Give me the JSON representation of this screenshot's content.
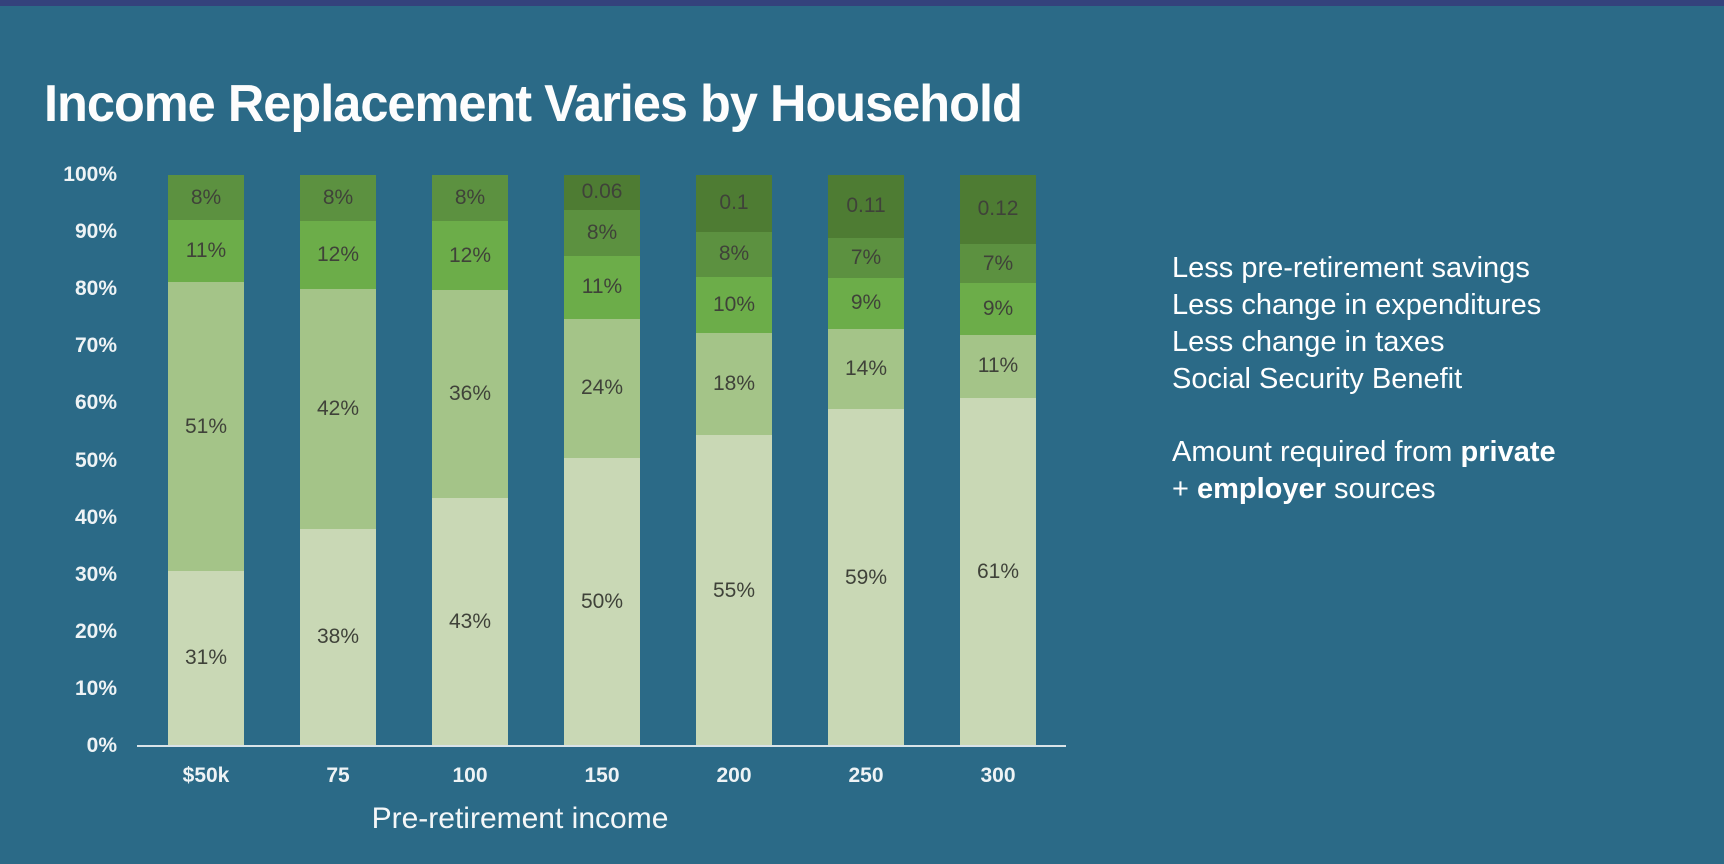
{
  "title": "Income Replacement Varies by Household",
  "colors": {
    "background": "#2b6a87",
    "top_strip": "#34427c",
    "axis_line": "#d9e3e8",
    "tick_label": "#eef3f5",
    "data_label": "#3f4239"
  },
  "chart_data": {
    "type": "bar",
    "stacked": true,
    "normalized_to_100": true,
    "title": "Income Replacement Varies by Household",
    "xlabel": "Pre-retirement income",
    "ylabel": "",
    "ylim": [
      0,
      100
    ],
    "grid": false,
    "legend_position": "right",
    "y_ticks": [
      "0%",
      "10%",
      "20%",
      "30%",
      "40%",
      "50%",
      "60%",
      "70%",
      "80%",
      "90%",
      "100%"
    ],
    "categories": [
      "$50k",
      "75",
      "100",
      "150",
      "200",
      "250",
      "300"
    ],
    "series": [
      {
        "name": "Less pre-retirement savings",
        "color": "#4e7c33",
        "values": [
          0,
          0,
          0,
          6,
          10,
          11,
          12
        ],
        "labels": [
          "",
          "",
          "",
          "0.06",
          "0.1",
          "0.11",
          "0.12"
        ]
      },
      {
        "name": "Less change in expenditures",
        "color": "#5c9140",
        "values": [
          8,
          8,
          8,
          8,
          8,
          7,
          7
        ],
        "labels": [
          "8%",
          "8%",
          "8%",
          "8%",
          "8%",
          "7%",
          "7%"
        ]
      },
      {
        "name": "Less change in taxes",
        "color": "#6cad49",
        "values": [
          11,
          12,
          12,
          11,
          10,
          9,
          9
        ],
        "labels": [
          "11%",
          "12%",
          "12%",
          "11%",
          "10%",
          "9%",
          "9%"
        ]
      },
      {
        "name": "Social Security Benefit",
        "color": "#a4c488",
        "values": [
          51,
          42,
          36,
          24,
          18,
          14,
          11
        ],
        "labels": [
          "51%",
          "42%",
          "36%",
          "24%",
          "18%",
          "14%",
          "11%"
        ]
      },
      {
        "name": "Amount required from private + employer sources",
        "color": "#c9d8b5",
        "values": [
          31,
          38,
          43,
          50,
          55,
          59,
          61
        ],
        "labels": [
          "31%",
          "38%",
          "43%",
          "50%",
          "55%",
          "59%",
          "61%"
        ]
      }
    ]
  },
  "legend": {
    "lines": [
      "Less pre-retirement savings",
      "Less change in expenditures",
      "Less change in taxes",
      "Social Security Benefit"
    ],
    "note": {
      "prefix": "Amount required from ",
      "bold1": "private",
      "plus": "+ ",
      "bold2": "employer",
      "suffix": " sources"
    }
  }
}
